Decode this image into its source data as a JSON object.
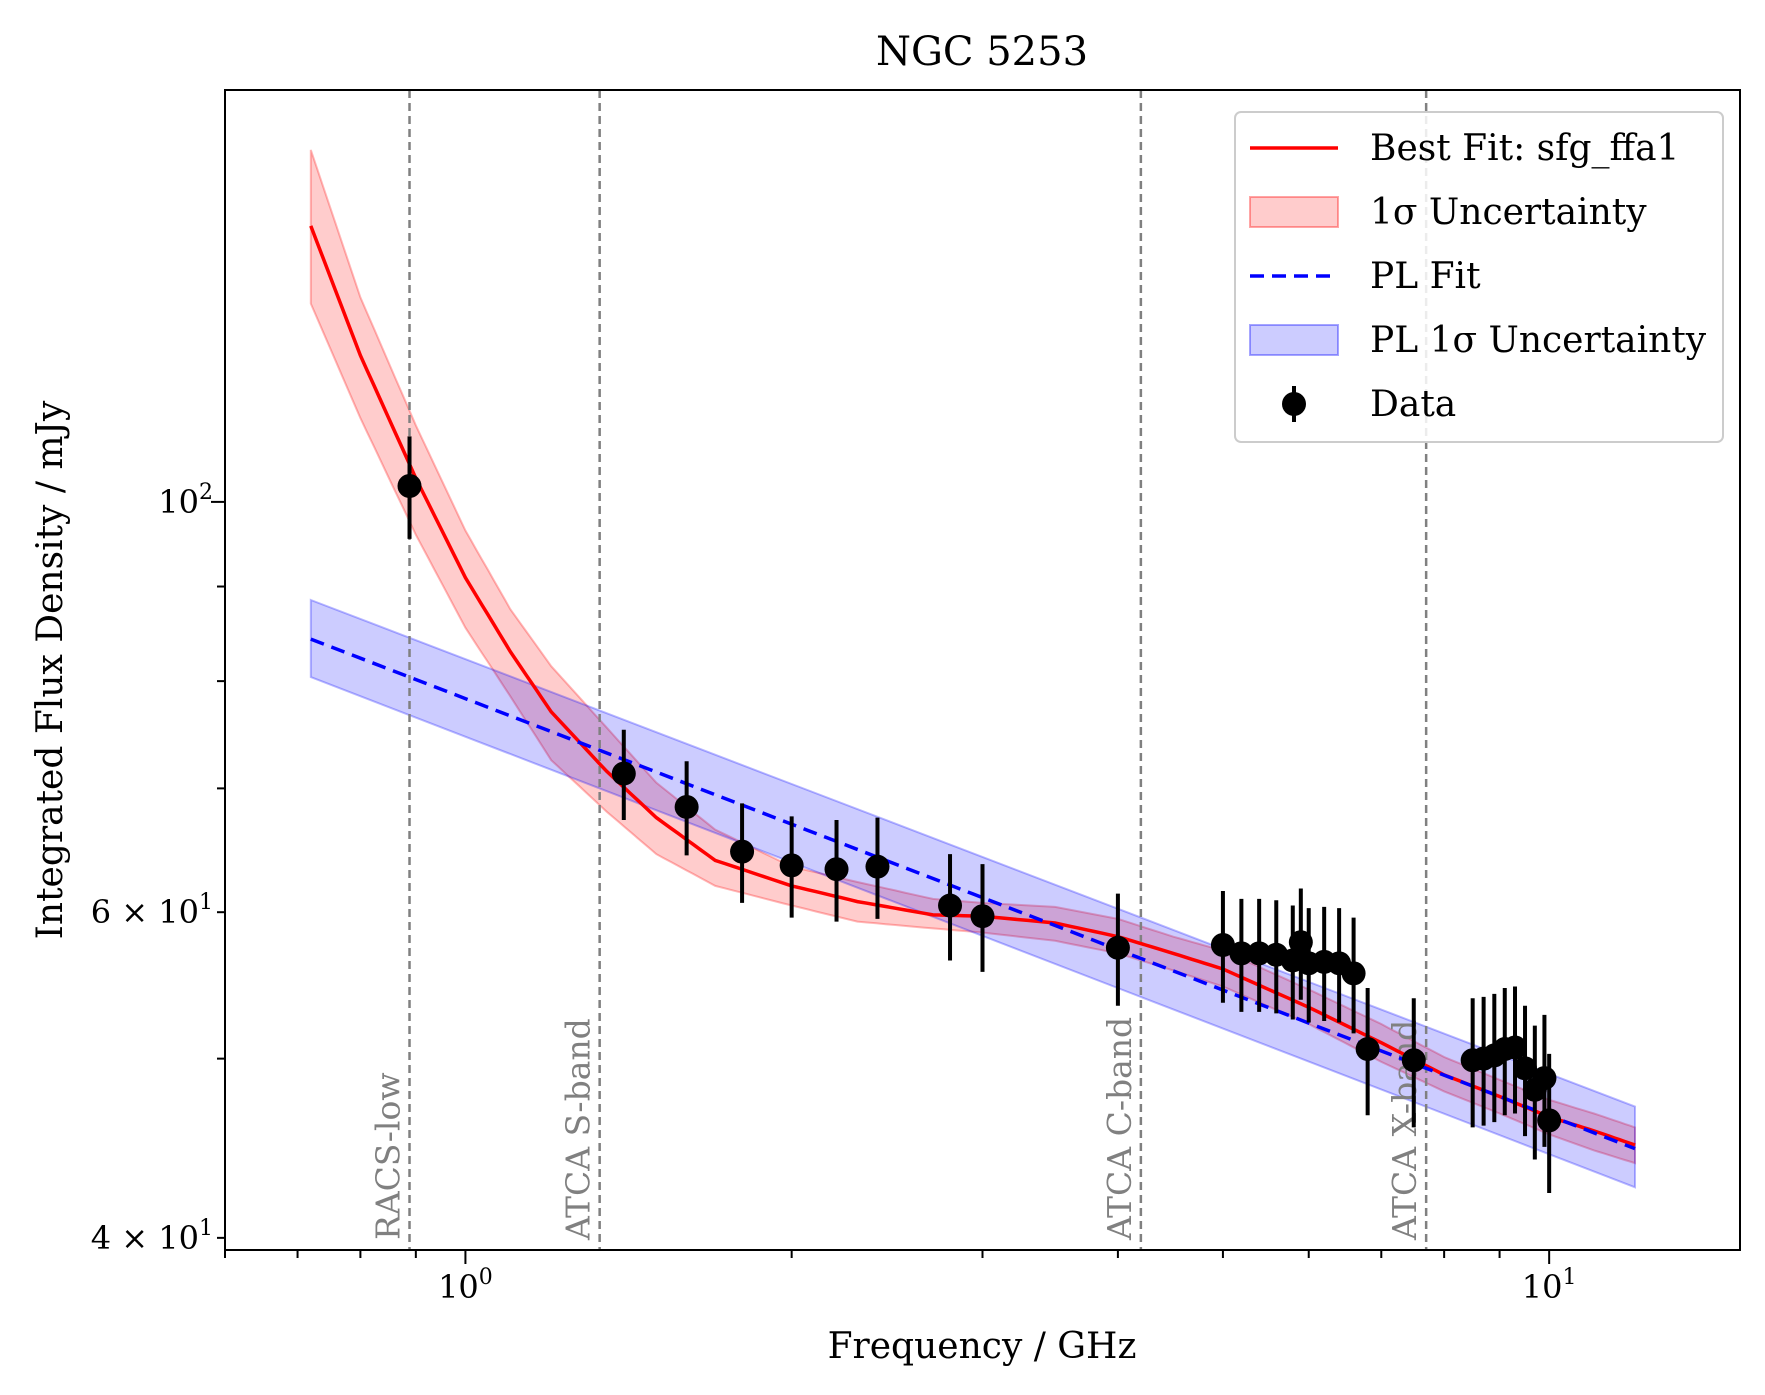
{
  "chart_data": {
    "type": "scatter",
    "title": "NGC 5253",
    "xlabel": "Frequency / GHz",
    "ylabel": "Integrated Flux Density / mJy",
    "xscale": "log",
    "yscale": "log",
    "xlim": [
      0.6,
      15
    ],
    "ylim": [
      39.4,
      167
    ],
    "x_ticks": [
      {
        "value": 1,
        "label": "10",
        "exp": "0"
      },
      {
        "value": 10,
        "label": "10",
        "exp": "1"
      }
    ],
    "y_ticks": [
      {
        "value": 100,
        "label": "10",
        "exp": "2"
      },
      {
        "value": 60,
        "label": "6 × 10",
        "exp": "1"
      },
      {
        "value": 40,
        "label": "4 × 10",
        "exp": "1"
      }
    ],
    "band_markers": [
      {
        "label": "RACS-low",
        "freq": 0.888
      },
      {
        "label": "ATCA S-band",
        "freq": 1.33
      },
      {
        "label": "ATCA C-band",
        "freq": 4.2
      },
      {
        "label": "ATCA X-band",
        "freq": 7.7
      }
    ],
    "series": [
      {
        "name": "Best Fit: sfg_ffa1",
        "kind": "line",
        "color": "#ff0000",
        "x": [
          0.72,
          0.8,
          0.9,
          1.0,
          1.1,
          1.2,
          1.35,
          1.5,
          1.7,
          2.0,
          2.3,
          2.7,
          3.0,
          3.5,
          4.0,
          4.5,
          5.0,
          6.0,
          7.0,
          8.0,
          9.0,
          10.0,
          11.0,
          12.0
        ],
        "y": [
          141,
          120,
          103,
          91,
          83,
          77,
          71.5,
          67.5,
          64,
          62,
          60.8,
          59.8,
          59.7,
          59.2,
          58.2,
          57,
          55.9,
          53.3,
          51,
          49,
          47.7,
          46.5,
          45.7,
          44.9
        ]
      },
      {
        "name": "1σ Uncertainty",
        "kind": "band",
        "color": "#ff0000",
        "x": [
          0.72,
          0.8,
          0.9,
          1.0,
          1.1,
          1.2,
          1.35,
          1.5,
          1.7,
          2.0,
          2.3,
          2.7,
          3.0,
          3.5,
          4.0,
          4.5,
          5.0,
          6.0,
          7.0,
          8.0,
          9.0,
          10.0,
          11.0,
          12.0
        ],
        "lower": [
          128,
          111,
          96,
          85.5,
          78.5,
          72.5,
          68,
          64.5,
          62,
          60.5,
          59.3,
          58.8,
          58.5,
          57.9,
          57,
          55.8,
          54.7,
          52.2,
          49.8,
          48,
          46.7,
          45.5,
          44.6,
          43.9
        ],
        "upper": [
          155,
          129,
          110,
          96.5,
          87.5,
          81.5,
          75.5,
          70.5,
          66.5,
          63.5,
          62.3,
          61,
          60.7,
          60.4,
          59.5,
          58.2,
          57.2,
          54.5,
          52.2,
          50.1,
          48.7,
          47.5,
          46.7,
          45.9
        ]
      },
      {
        "name": "PL Fit",
        "kind": "dashed-line",
        "color": "#0000ff",
        "x": [
          0.72,
          12.0
        ],
        "y": [
          84.3,
          44.7
        ]
      },
      {
        "name": "PL 1σ Uncertainty",
        "kind": "band",
        "color": "#0000ff",
        "x": [
          0.72,
          12.0
        ],
        "lower": [
          80.4,
          42.6
        ],
        "upper": [
          88.5,
          47.1
        ]
      },
      {
        "name": "Data",
        "kind": "errorbar",
        "color": "#000000",
        "x": [
          0.888,
          1.4,
          1.6,
          1.8,
          2.0,
          2.2,
          2.4,
          2.8,
          3.0,
          4.0,
          5.0,
          5.2,
          5.4,
          5.6,
          5.8,
          5.9,
          6.0,
          6.2,
          6.4,
          6.6,
          6.8,
          7.5,
          8.5,
          8.7,
          8.9,
          9.1,
          9.3,
          9.5,
          9.7,
          9.9,
          10.0
        ],
        "y": [
          102,
          71.3,
          68.4,
          64.7,
          63.6,
          63.3,
          63.5,
          60.5,
          59.7,
          57.4,
          57.6,
          57.0,
          57.0,
          56.9,
          56.5,
          57.8,
          56.3,
          56.4,
          56.3,
          55.6,
          50.6,
          49.9,
          49.9,
          50.0,
          50.2,
          50.6,
          50.7,
          49.4,
          48.1,
          48.8,
          46.3
        ],
        "err": [
          6.5,
          4.0,
          4.0,
          4.0,
          4.0,
          4.0,
          4.0,
          4.0,
          4.0,
          4.0,
          4.0,
          4.0,
          4.0,
          4.0,
          4.0,
          4.0,
          4.0,
          4.0,
          4.0,
          4.0,
          4.0,
          4.0,
          4.0,
          4.0,
          4.0,
          4.0,
          4.0,
          4.0,
          4.0,
          4.0,
          4.0
        ]
      }
    ],
    "legend": {
      "placement": "top-right",
      "entries": [
        "Best Fit: sfg_ffa1",
        "1σ Uncertainty",
        "PL Fit",
        "PL 1σ Uncertainty",
        "Data"
      ]
    }
  }
}
